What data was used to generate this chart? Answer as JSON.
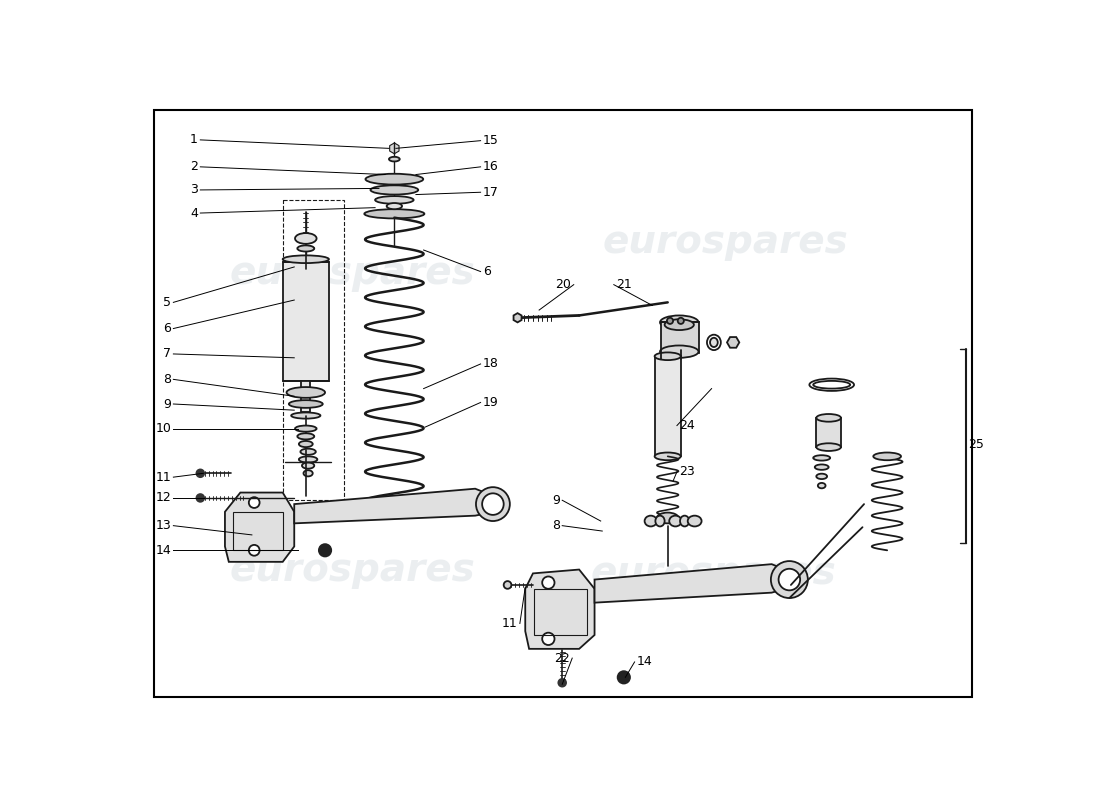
{
  "bg": "#f5f5f5",
  "fg": "#1a1a1a",
  "watermark": "eurospares",
  "wm_color": "#b8c4cc",
  "wm_alpha": 0.28
}
